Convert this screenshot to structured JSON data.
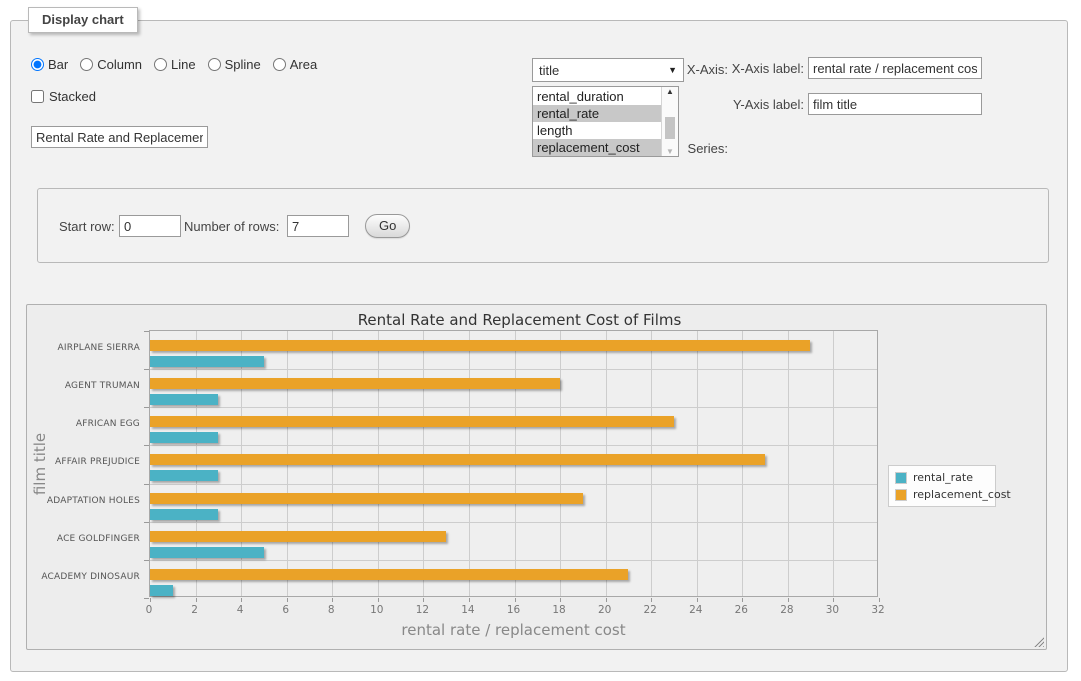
{
  "panel": {
    "legend": "Display chart"
  },
  "chart_type": {
    "options": [
      {
        "label": "Bar",
        "selected": true
      },
      {
        "label": "Column",
        "selected": false
      },
      {
        "label": "Line",
        "selected": false
      },
      {
        "label": "Spline",
        "selected": false
      },
      {
        "label": "Area",
        "selected": false
      }
    ]
  },
  "stacked": {
    "label": "Stacked",
    "checked": false
  },
  "title_input": {
    "value": "Rental Rate and Replacement Cost of Films"
  },
  "x_axis": {
    "label": "X-Axis:",
    "value": "title"
  },
  "series": {
    "label": "Series:",
    "options": [
      {
        "label": "rental_duration",
        "selected": false
      },
      {
        "label": "rental_rate",
        "selected": true
      },
      {
        "label": "length",
        "selected": false
      },
      {
        "label": "replacement_cost",
        "selected": true
      }
    ]
  },
  "x_axis_label": {
    "label": "X-Axis label:",
    "value": "rental rate / replacement cost"
  },
  "y_axis_label": {
    "label": "Y-Axis label:",
    "value": "film title"
  },
  "rows_form": {
    "start_row_label": "Start row:",
    "start_row_value": "0",
    "num_rows_label": "Number of rows:",
    "num_rows_value": "7",
    "go_label": "Go"
  },
  "chart_data": {
    "type": "bar",
    "orientation": "horizontal",
    "title": "Rental Rate and Replacement Cost of Films",
    "categories": [
      "AIRPLANE SIERRA",
      "AGENT TRUMAN",
      "AFRICAN EGG",
      "AFFAIR PREJUDICE",
      "ADAPTATION HOLES",
      "ACE GOLDFINGER",
      "ACADEMY DINOSAUR"
    ],
    "series": [
      {
        "name": "rental_rate",
        "color": "#4bb2c5",
        "values": [
          4.99,
          2.99,
          2.99,
          2.99,
          2.99,
          4.99,
          0.99
        ]
      },
      {
        "name": "replacement_cost",
        "color": "#EAA228",
        "values": [
          28.99,
          17.99,
          22.99,
          26.99,
          18.99,
          12.99,
          20.99
        ]
      }
    ],
    "xlabel": "rental rate / replacement cost",
    "ylabel": "film title",
    "xlim": [
      0,
      32
    ],
    "xticks": [
      0,
      2,
      4,
      6,
      8,
      10,
      12,
      14,
      16,
      18,
      20,
      22,
      24,
      26,
      28,
      30,
      32
    ],
    "grid": true,
    "legend_position": "right-outside"
  }
}
